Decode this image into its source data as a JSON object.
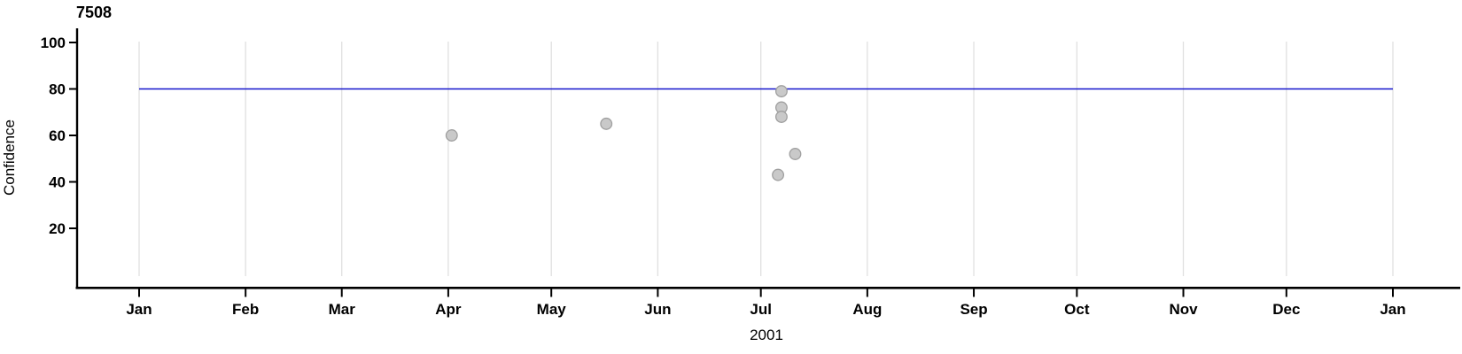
{
  "chart_data": {
    "type": "scatter",
    "title": "7508",
    "xlabel": "2001",
    "ylabel": "Confidence",
    "x_axis": {
      "kind": "date",
      "year_label": "2001",
      "tick_labels": [
        "Jan",
        "Feb",
        "Mar",
        "Apr",
        "May",
        "Jun",
        "Jul",
        "Aug",
        "Sep",
        "Oct",
        "Nov",
        "Dec",
        "Jan"
      ],
      "range": [
        "2001-01-01",
        "2002-01-01"
      ]
    },
    "y_axis": {
      "ticks": [
        20,
        40,
        60,
        80,
        100
      ],
      "range": [
        -5,
        106
      ]
    },
    "grid": {
      "vertical_months": true,
      "horizontal": false
    },
    "legend": "none",
    "reference_line": {
      "value": 80,
      "color": "#1414cc"
    },
    "points": [
      {
        "date": "2001-04-02",
        "value": 60
      },
      {
        "date": "2001-05-17",
        "value": 65
      },
      {
        "date": "2001-07-06",
        "value": 43
      },
      {
        "date": "2001-07-07",
        "value": 79
      },
      {
        "date": "2001-07-07",
        "value": 72
      },
      {
        "date": "2001-07-07",
        "value": 68
      },
      {
        "date": "2001-07-11",
        "value": 52
      }
    ],
    "point_style": {
      "fill": "#c9c9c9",
      "stroke": "#9f9f9f",
      "radius": 6.3
    },
    "colors": {
      "axis": "#000000",
      "grid": "#e0e0e0",
      "background": "#ffffff",
      "reference_line": "#1414cc"
    }
  }
}
